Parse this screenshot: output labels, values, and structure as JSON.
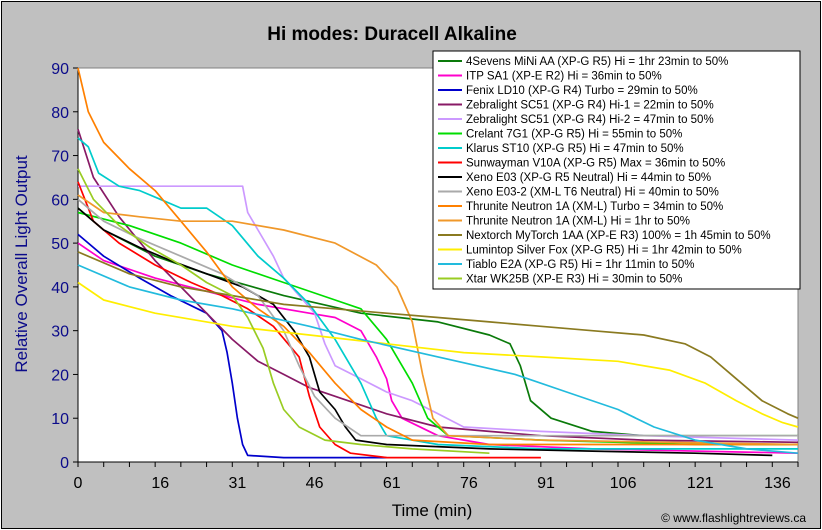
{
  "chart_data": {
    "type": "line",
    "title": "Hi modes: Duracell Alkaline",
    "xlabel": "Time (min)",
    "ylabel": "Relative Overall Light Output",
    "xlim": [
      0,
      140
    ],
    "ylim": [
      0,
      90
    ],
    "xticks": [
      0,
      16,
      31,
      46,
      61,
      76,
      91,
      106,
      121,
      136
    ],
    "yticks": [
      0,
      10,
      20,
      30,
      40,
      50,
      60,
      70,
      80,
      90
    ],
    "grid": false,
    "legend_position": "top-right",
    "credit": "© www.flashlightreviews.ca",
    "series": [
      {
        "name": "4Sevens MiNi AA (XP-G R5) Hi = 1hr 23min to 50%",
        "color": "#0a7a0a",
        "points": [
          [
            0,
            58
          ],
          [
            5,
            53
          ],
          [
            15,
            47
          ],
          [
            25,
            43
          ],
          [
            40,
            38
          ],
          [
            55,
            34
          ],
          [
            70,
            32
          ],
          [
            80,
            29
          ],
          [
            84,
            27
          ],
          [
            86,
            22
          ],
          [
            88,
            14
          ],
          [
            92,
            10
          ],
          [
            100,
            7
          ],
          [
            110,
            6
          ],
          [
            125,
            6
          ],
          [
            140,
            6
          ]
        ]
      },
      {
        "name": "ITP SA1 (XP-E R2) Hi = 36min to 50%",
        "color": "#ff00cc",
        "points": [
          [
            0,
            50
          ],
          [
            5,
            46
          ],
          [
            15,
            42
          ],
          [
            25,
            39
          ],
          [
            35,
            36
          ],
          [
            45,
            34
          ],
          [
            50,
            33
          ],
          [
            55,
            30
          ],
          [
            58,
            24
          ],
          [
            60,
            19
          ],
          [
            61,
            14
          ],
          [
            63,
            10
          ],
          [
            70,
            6
          ],
          [
            80,
            4
          ],
          [
            100,
            3
          ],
          [
            140,
            2
          ]
        ]
      },
      {
        "name": "Fenix LD10 (XP-G R4) Turbo = 29min to 50%",
        "color": "#0000cc",
        "points": [
          [
            0,
            52
          ],
          [
            5,
            47
          ],
          [
            12,
            42
          ],
          [
            18,
            38
          ],
          [
            25,
            34
          ],
          [
            28,
            30
          ],
          [
            29,
            25
          ],
          [
            30,
            18
          ],
          [
            31,
            10
          ],
          [
            32,
            4
          ],
          [
            33,
            1.5
          ],
          [
            40,
            1
          ],
          [
            60,
            1
          ]
        ]
      },
      {
        "name": "Zebralight SC51 (XP-G R4) Hi-1 = 22min to 50%",
        "color": "#881a66",
        "points": [
          [
            0,
            76
          ],
          [
            3,
            65
          ],
          [
            8,
            56
          ],
          [
            15,
            46
          ],
          [
            20,
            40
          ],
          [
            25,
            34
          ],
          [
            30,
            28
          ],
          [
            35,
            23
          ],
          [
            40,
            20
          ],
          [
            45,
            17
          ],
          [
            55,
            13
          ],
          [
            60,
            11
          ],
          [
            70,
            8
          ],
          [
            80,
            7
          ],
          [
            90,
            6
          ],
          [
            110,
            5
          ],
          [
            140,
            4.5
          ]
        ]
      },
      {
        "name": "Zebralight SC51 (XP-G R4) Hi-2 = 47min to 50%",
        "color": "#cc99ff",
        "points": [
          [
            0,
            63
          ],
          [
            10,
            63
          ],
          [
            20,
            63
          ],
          [
            30,
            63
          ],
          [
            32,
            63
          ],
          [
            33,
            57
          ],
          [
            35,
            53
          ],
          [
            38,
            47
          ],
          [
            40,
            42
          ],
          [
            43,
            38
          ],
          [
            46,
            34
          ],
          [
            48,
            27
          ],
          [
            50,
            22
          ],
          [
            55,
            19
          ],
          [
            60,
            16
          ],
          [
            65,
            14
          ],
          [
            70,
            11
          ],
          [
            75,
            8
          ],
          [
            90,
            7
          ],
          [
            110,
            6
          ],
          [
            140,
            5
          ]
        ]
      },
      {
        "name": "Crelant 7G1 (XP-G R5) Hi = 55min to 50%",
        "color": "#00dd00",
        "points": [
          [
            0,
            57
          ],
          [
            10,
            54
          ],
          [
            20,
            50
          ],
          [
            30,
            45
          ],
          [
            40,
            41
          ],
          [
            50,
            37
          ],
          [
            55,
            35
          ],
          [
            60,
            28
          ],
          [
            65,
            18
          ],
          [
            68,
            10
          ],
          [
            72,
            6
          ],
          [
            90,
            5
          ],
          [
            120,
            4
          ],
          [
            140,
            4
          ]
        ]
      },
      {
        "name": "Klarus ST10 (XP-G R5) Hi = 47min to 50%",
        "color": "#00cccc",
        "points": [
          [
            0,
            74
          ],
          [
            2,
            72
          ],
          [
            4,
            66
          ],
          [
            8,
            63
          ],
          [
            12,
            62
          ],
          [
            16,
            60
          ],
          [
            20,
            58
          ],
          [
            25,
            58
          ],
          [
            30,
            54
          ],
          [
            35,
            47
          ],
          [
            40,
            42
          ],
          [
            45,
            36
          ],
          [
            50,
            28
          ],
          [
            55,
            18
          ],
          [
            58,
            10
          ],
          [
            60,
            6
          ],
          [
            70,
            4
          ],
          [
            90,
            3
          ],
          [
            140,
            3
          ]
        ]
      },
      {
        "name": "Sunwayman V10A (XP-G R5) Max = 36min to 50%",
        "color": "#ff0000",
        "points": [
          [
            0,
            64
          ],
          [
            3,
            55
          ],
          [
            8,
            50
          ],
          [
            15,
            45
          ],
          [
            22,
            41
          ],
          [
            28,
            38
          ],
          [
            33,
            35
          ],
          [
            38,
            31
          ],
          [
            43,
            24
          ],
          [
            45,
            15
          ],
          [
            47,
            8
          ],
          [
            50,
            4
          ],
          [
            53,
            2
          ],
          [
            60,
            1
          ],
          [
            70,
            1
          ],
          [
            90,
            1
          ]
        ]
      },
      {
        "name": "Xeno E03 (XP-G R5 Neutral) Hi = 44min to 50%",
        "color": "#000000",
        "points": [
          [
            0,
            58
          ],
          [
            5,
            53
          ],
          [
            12,
            49
          ],
          [
            18,
            46
          ],
          [
            25,
            43
          ],
          [
            32,
            40
          ],
          [
            38,
            36
          ],
          [
            42,
            30
          ],
          [
            45,
            24
          ],
          [
            47,
            16
          ],
          [
            50,
            12
          ],
          [
            52,
            8
          ],
          [
            54,
            5
          ],
          [
            60,
            4
          ],
          [
            80,
            3
          ],
          [
            100,
            2.5
          ],
          [
            120,
            2
          ],
          [
            135,
            1.5
          ]
        ]
      },
      {
        "name": "Xeno E03-2 (XM-L T6 Neutral) Hi = 40min to 50%",
        "color": "#aaaaaa",
        "points": [
          [
            0,
            60
          ],
          [
            5,
            55
          ],
          [
            12,
            51
          ],
          [
            20,
            47
          ],
          [
            28,
            43
          ],
          [
            35,
            38
          ],
          [
            40,
            30
          ],
          [
            43,
            22
          ],
          [
            46,
            15
          ],
          [
            50,
            10
          ],
          [
            55,
            6
          ],
          [
            70,
            6
          ],
          [
            100,
            6
          ],
          [
            140,
            6
          ]
        ]
      },
      {
        "name": "Thrunite Neutron 1A (XM-L) Turbo = 34min to 50%",
        "color": "#ff8000",
        "points": [
          [
            0,
            90
          ],
          [
            2,
            80
          ],
          [
            5,
            73
          ],
          [
            10,
            67
          ],
          [
            15,
            62
          ],
          [
            20,
            55
          ],
          [
            25,
            48
          ],
          [
            30,
            40
          ],
          [
            35,
            35
          ],
          [
            40,
            31
          ],
          [
            45,
            25
          ],
          [
            50,
            18
          ],
          [
            55,
            12
          ],
          [
            60,
            8
          ],
          [
            65,
            5
          ],
          [
            80,
            4
          ],
          [
            140,
            4
          ]
        ]
      },
      {
        "name": "Thrunite Neutron 1A (XM-L) Hi = 1hr to 50%",
        "color": "#f0982a",
        "points": [
          [
            0,
            61
          ],
          [
            5,
            57
          ],
          [
            12,
            56
          ],
          [
            20,
            55
          ],
          [
            30,
            55
          ],
          [
            40,
            53
          ],
          [
            50,
            50
          ],
          [
            58,
            45
          ],
          [
            62,
            40
          ],
          [
            65,
            32
          ],
          [
            67,
            20
          ],
          [
            69,
            10
          ],
          [
            72,
            6
          ],
          [
            90,
            5
          ],
          [
            140,
            4
          ]
        ]
      },
      {
        "name": "Nextorch MyTorch 1AA (XP-E R3) 100% = 1h 45min to 50%",
        "color": "#8a7a20",
        "points": [
          [
            0,
            48
          ],
          [
            10,
            43
          ],
          [
            20,
            40
          ],
          [
            30,
            38
          ],
          [
            40,
            36
          ],
          [
            50,
            35
          ],
          [
            60,
            34
          ],
          [
            70,
            33
          ],
          [
            80,
            32
          ],
          [
            90,
            31
          ],
          [
            100,
            30
          ],
          [
            110,
            29
          ],
          [
            118,
            27
          ],
          [
            123,
            24
          ],
          [
            128,
            19
          ],
          [
            133,
            14
          ],
          [
            138,
            11
          ],
          [
            140,
            10
          ]
        ]
      },
      {
        "name": "Lumintop Silver Fox (XP-G R5) Hi = 1hr 42min to 50%",
        "color": "#ffee00",
        "points": [
          [
            0,
            41
          ],
          [
            5,
            37
          ],
          [
            15,
            34
          ],
          [
            30,
            31
          ],
          [
            45,
            29
          ],
          [
            60,
            27
          ],
          [
            75,
            25
          ],
          [
            90,
            24
          ],
          [
            105,
            23
          ],
          [
            115,
            21
          ],
          [
            122,
            18
          ],
          [
            128,
            14
          ],
          [
            133,
            11
          ],
          [
            137,
            9
          ],
          [
            140,
            8
          ]
        ]
      },
      {
        "name": "Tiablo E2A (XP-G R5) Hi = 1hr 11min to 50%",
        "color": "#22bbdd",
        "points": [
          [
            0,
            45
          ],
          [
            10,
            40
          ],
          [
            20,
            37
          ],
          [
            30,
            35
          ],
          [
            45,
            31
          ],
          [
            55,
            28
          ],
          [
            70,
            24
          ],
          [
            85,
            20
          ],
          [
            95,
            16
          ],
          [
            105,
            12
          ],
          [
            112,
            8
          ],
          [
            120,
            5
          ],
          [
            130,
            3
          ],
          [
            140,
            2
          ]
        ]
      },
      {
        "name": "Xtar WK25B (XP-E R3) Hi = 30min to 50%",
        "color": "#99cc22",
        "points": [
          [
            0,
            67
          ],
          [
            3,
            60
          ],
          [
            8,
            54
          ],
          [
            14,
            49
          ],
          [
            20,
            45
          ],
          [
            25,
            41
          ],
          [
            30,
            38
          ],
          [
            33,
            33
          ],
          [
            36,
            26
          ],
          [
            38,
            18
          ],
          [
            40,
            12
          ],
          [
            43,
            8
          ],
          [
            48,
            5
          ],
          [
            55,
            4
          ],
          [
            65,
            3
          ],
          [
            80,
            2
          ]
        ]
      }
    ]
  }
}
